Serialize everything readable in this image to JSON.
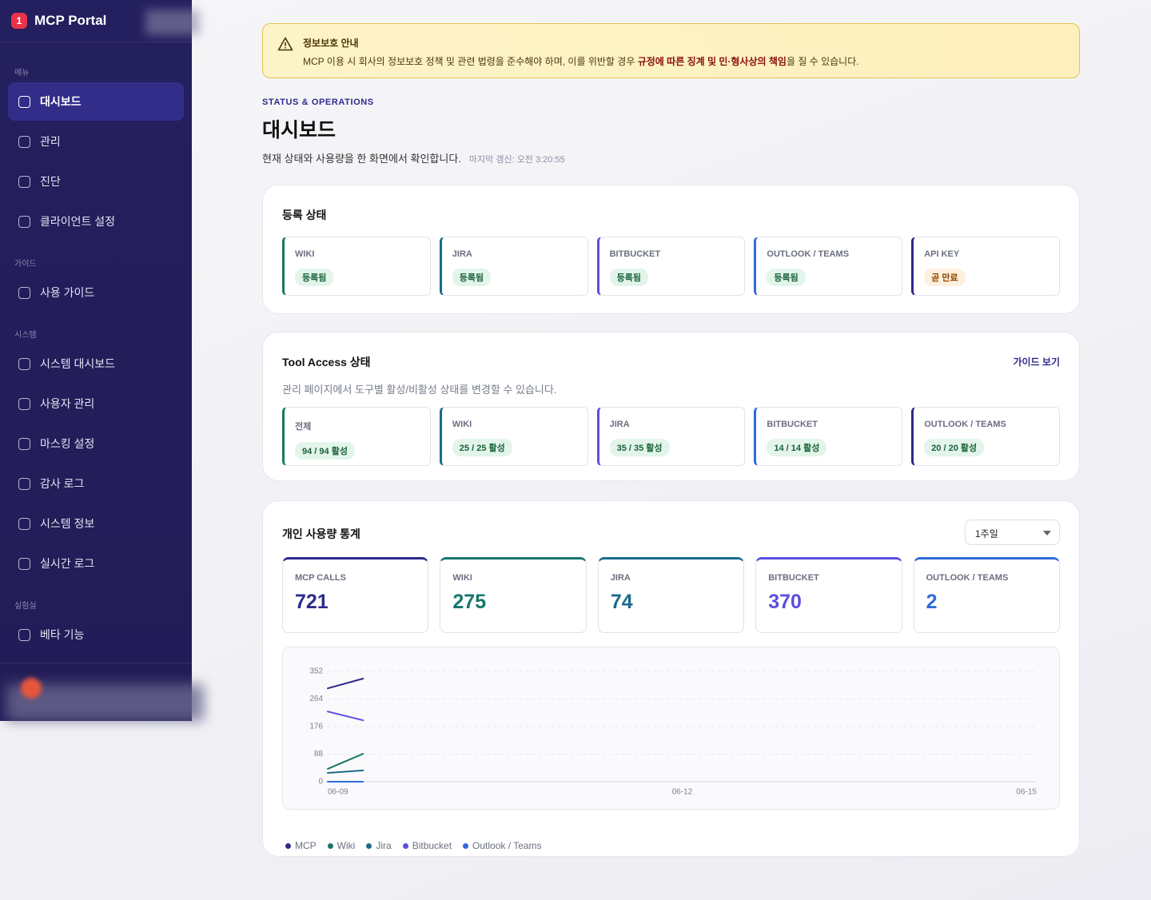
{
  "sidebar": {
    "logo": "1",
    "brand": "MCP Portal",
    "sections": [
      {
        "label": "메뉴",
        "items": [
          "대시보드",
          "관리",
          "진단",
          "클라이언트 설정"
        ]
      },
      {
        "label": "가이드",
        "items": [
          "사용 가이드"
        ]
      },
      {
        "label": "시스템",
        "items": [
          "시스템 대시보드",
          "사용자 관리",
          "마스킹 설정",
          "감사 로그",
          "시스템 정보",
          "실시간 로그"
        ]
      },
      {
        "label": "실험실",
        "items": [
          "베타 기능"
        ]
      }
    ]
  },
  "notice": {
    "title": "정보보호 안내",
    "text": [
      "MCP 이용 시 회사의 정보보호 정책 및 관련 법령을 준수해야 하며, 이를 위반할 경우 ",
      "규정에 따른 징계 및 민·형사상의 책임",
      "을 질 수 있습니다."
    ]
  },
  "header": {
    "eyebrow": "STATUS & OPERATIONS",
    "title": "대시보드",
    "subtitle": "현재 상태와 사용량을 한 화면에서 확인합니다.",
    "updated": "마지막 갱신: 오전 3:20:55"
  },
  "registration": {
    "title": "등록 상태",
    "cards": [
      {
        "name": "WIKI",
        "status": "등록됨"
      },
      {
        "name": "JIRA",
        "status": "등록됨"
      },
      {
        "name": "BITBUCKET",
        "status": "등록됨"
      },
      {
        "name": "OUTLOOK / TEAMS",
        "status": "등록됨"
      },
      {
        "name": "API KEY",
        "status": "곧 만료"
      }
    ]
  },
  "tool_access": {
    "title": "Tool Access 상태",
    "link": "가이드 보기",
    "description": "관리 페이지에서 도구별 활성/비활성 상태를 변경할 수 있습니다.",
    "cards": [
      {
        "name": "전체",
        "status": "94 / 94 활성"
      },
      {
        "name": "WIKI",
        "status": "25 / 25 활성"
      },
      {
        "name": "JIRA",
        "status": "35 / 35 활성"
      },
      {
        "name": "BITBUCKET",
        "status": "14 / 14 활성"
      },
      {
        "name": "OUTLOOK / TEAMS",
        "status": "20 / 20 활성"
      }
    ]
  },
  "usage": {
    "title": "개인 사용량 통계",
    "period": "1주일",
    "stats": [
      {
        "label": "MCP CALLS",
        "value": 721
      },
      {
        "label": "WIKI",
        "value": 275
      },
      {
        "label": "JIRA",
        "value": 74
      },
      {
        "label": "BITBUCKET",
        "value": 370
      },
      {
        "label": "OUTLOOK / TEAMS",
        "value": 2
      }
    ]
  },
  "chart_data": {
    "type": "line",
    "categories": [
      "06-09",
      null,
      null,
      null,
      null,
      null,
      null,
      null,
      null,
      null,
      "06-12",
      null,
      null,
      null,
      null,
      null,
      null,
      null,
      null,
      null,
      "06-15"
    ],
    "ylim": [
      0,
      352
    ],
    "yticks": [
      0,
      88,
      176,
      264,
      352
    ],
    "grid": true,
    "series": [
      {
        "name": "MCP",
        "color": "#2e2a8c",
        "values": [
          298,
          329,
          null,
          null,
          null,
          null,
          null,
          null,
          null,
          null,
          null,
          null,
          null,
          null,
          null,
          null,
          null,
          null,
          null,
          null,
          null
        ]
      },
      {
        "name": "Wiki",
        "color": "#17766a",
        "values": [
          41,
          89,
          null,
          null,
          null,
          null,
          null,
          null,
          null,
          null,
          null,
          null,
          null,
          null,
          null,
          null,
          null,
          null,
          null,
          null,
          null
        ]
      },
      {
        "name": "Jira",
        "color": "#1b6b8c",
        "values": [
          28,
          36,
          null,
          null,
          null,
          null,
          null,
          null,
          null,
          null,
          null,
          null,
          null,
          null,
          null,
          null,
          null,
          null,
          null,
          null,
          null
        ]
      },
      {
        "name": "Bitbucket",
        "color": "#5b4ee0",
        "values": [
          224,
          196,
          null,
          null,
          null,
          null,
          null,
          null,
          null,
          null,
          null,
          null,
          null,
          null,
          null,
          null,
          null,
          null,
          null,
          null,
          null
        ]
      },
      {
        "name": "Outlook / Teams",
        "color": "#2f6bdc",
        "values": [
          0,
          0,
          null,
          null,
          null,
          null,
          null,
          null,
          null,
          null,
          null,
          null,
          null,
          null,
          null,
          null,
          null,
          null,
          null,
          null,
          null
        ]
      }
    ]
  }
}
